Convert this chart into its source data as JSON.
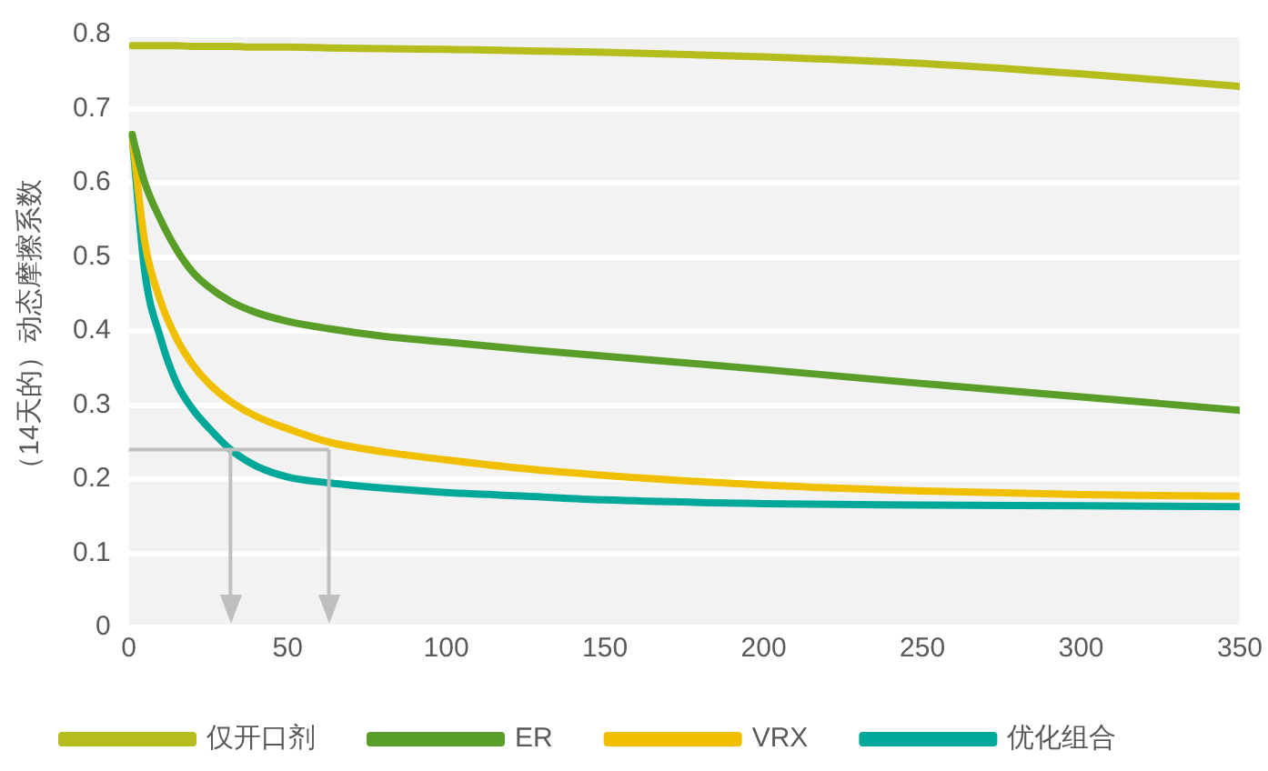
{
  "chart_data": {
    "type": "line",
    "ylabel": "（14天的）动态摩擦系数",
    "xlim": [
      0,
      350
    ],
    "xticks": [
      0,
      50,
      100,
      150,
      200,
      250,
      300,
      350
    ],
    "ylim": [
      0,
      0.8
    ],
    "yticks": [
      0,
      0.1,
      0.2,
      0.3,
      0.4,
      0.5,
      0.6,
      0.7,
      0.8
    ],
    "grid": "y",
    "legend": "bottom",
    "marker": "none",
    "line_style": "solid",
    "x": [
      1,
      5,
      10,
      15,
      20,
      25,
      32,
      40,
      50,
      63,
      80,
      100,
      125,
      150,
      200,
      250,
      300,
      350
    ],
    "series": [
      {
        "name": "仅开口剂",
        "color": "#b5bd1c",
        "values": [
          0.785,
          0.785,
          0.785,
          0.785,
          0.784,
          0.784,
          0.784,
          0.783,
          0.783,
          0.782,
          0.781,
          0.78,
          0.778,
          0.776,
          0.77,
          0.761,
          0.747,
          0.73
        ]
      },
      {
        "name": "ER",
        "color": "#5a9e2a",
        "values": [
          0.665,
          0.6,
          0.55,
          0.51,
          0.48,
          0.46,
          0.44,
          0.425,
          0.413,
          0.403,
          0.393,
          0.385,
          0.375,
          0.366,
          0.348,
          0.329,
          0.311,
          0.293
        ]
      },
      {
        "name": "VRX",
        "color": "#f0c000",
        "values": [
          0.665,
          0.52,
          0.44,
          0.39,
          0.355,
          0.33,
          0.305,
          0.285,
          0.268,
          0.25,
          0.237,
          0.226,
          0.214,
          0.205,
          0.192,
          0.184,
          0.179,
          0.177
        ]
      },
      {
        "name": "优化组合",
        "color": "#00a89a",
        "values": [
          0.665,
          0.48,
          0.39,
          0.33,
          0.295,
          0.27,
          0.24,
          0.218,
          0.203,
          0.195,
          0.188,
          0.182,
          0.177,
          0.172,
          0.167,
          0.165,
          0.164,
          0.163
        ]
      }
    ],
    "ref_lines": [
      {
        "axis": "y",
        "value": 0.24,
        "color": "#bfbfbf"
      },
      {
        "axis": "x",
        "value": 32,
        "color": "#bfbfbf"
      },
      {
        "axis": "x",
        "value": 63,
        "color": "#bfbfbf"
      }
    ]
  }
}
